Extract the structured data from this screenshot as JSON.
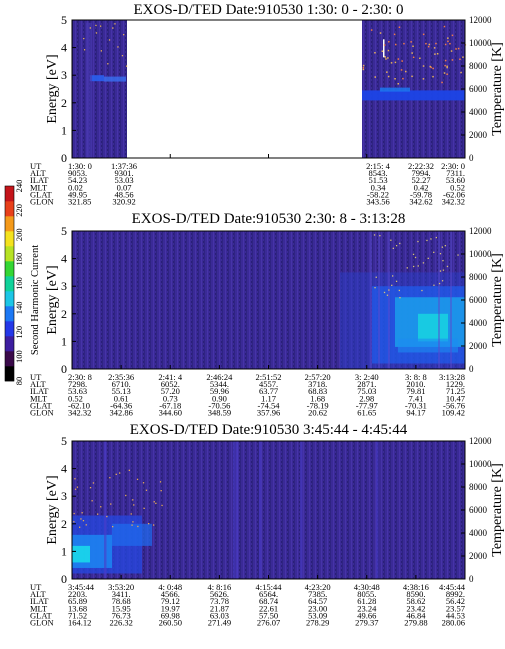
{
  "chart_data": [
    {
      "type": "heatmap",
      "title": "EXOS-D/TED   Date:910530  1:30: 0 - 2:30: 0",
      "ylabel": "Energy [eV]",
      "y2label": "Temperature [K]",
      "ylim": [
        0,
        5
      ],
      "y2lim": [
        0,
        12000
      ],
      "yticks": [
        "0",
        "1",
        "2",
        "3",
        "4",
        "5"
      ],
      "y2ticks": [
        "0",
        "2000",
        "4000",
        "6000",
        "8000",
        "10000",
        "12000"
      ],
      "data_gap": {
        "from": "1:37:36",
        "to": "2:15: 4"
      },
      "rows": [
        "UT",
        "ALT",
        "ILAT",
        "MLT",
        "GLAT",
        "GLON"
      ],
      "columns": [
        [
          "1:30: 0",
          "9053.",
          "54.23",
          "0.02",
          "49.95",
          "321.85"
        ],
        [
          "1:37:36",
          "9301.",
          "53.03",
          "0.07",
          "48.56",
          "320.92"
        ],
        [
          "2:15: 4",
          "8543.",
          "51.53",
          "0.34",
          "-58.22",
          "343.56"
        ],
        [
          "2:22:32",
          "7994.",
          "52.27",
          "0.42",
          "-59.78",
          "342.62"
        ],
        [
          "2:30: 0",
          "7311.",
          "53.60",
          "0.52",
          "-62.06",
          "342.32"
        ]
      ]
    },
    {
      "type": "heatmap",
      "title": "EXOS-D/TED   Date:910530  2:30: 8 - 3:13:28",
      "ylabel": "Energy [eV]",
      "y2label": "Temperature [K]",
      "ylim": [
        0,
        5
      ],
      "y2lim": [
        0,
        12000
      ],
      "yticks": [
        "0",
        "1",
        "2",
        "3",
        "4",
        "5"
      ],
      "y2ticks": [
        "0",
        "2000",
        "4000",
        "6000",
        "8000",
        "10000",
        "12000"
      ],
      "rows": [
        "UT",
        "ALT",
        "ILAT",
        "MLT",
        "GLAT",
        "GLON"
      ],
      "columns": [
        [
          "2:30: 8",
          "7298.",
          "53.63",
          "0.52",
          "-62.10",
          "342.32"
        ],
        [
          "2:35:36",
          "6710.",
          "55.13",
          "0.61",
          "-64.36",
          "342.86"
        ],
        [
          "2:41: 4",
          "6052.",
          "57.20",
          "0.73",
          "-67.18",
          "344.60"
        ],
        [
          "2:46:24",
          "5344.",
          "59.96",
          "0.90",
          "-70.56",
          "348.59"
        ],
        [
          "2:51:52",
          "4557.",
          "63.77",
          "1.17",
          "-74.54",
          "357.96"
        ],
        [
          "2:57:20",
          "3718.",
          "68.83",
          "1.68",
          "-78.19",
          "20.62"
        ],
        [
          "3: 2:40",
          "2871.",
          "75.03",
          "2.98",
          "-77.97",
          "61.65"
        ],
        [
          "3: 8: 8",
          "2010.",
          "79.81",
          "7.41",
          "-70.31",
          "94.17"
        ],
        [
          "3:13:28",
          "1229.",
          "71.25",
          "10.47",
          "-56.76",
          "109.42"
        ]
      ]
    },
    {
      "type": "heatmap",
      "title": "EXOS-D/TED   Date:910530  3:45:44 - 4:45:44",
      "ylabel": "Energy [eV]",
      "y2label": "Temperature [K]",
      "ylim": [
        0,
        5
      ],
      "y2lim": [
        0,
        12000
      ],
      "yticks": [
        "0",
        "1",
        "2",
        "3",
        "4",
        "5"
      ],
      "y2ticks": [
        "0",
        "2000",
        "4000",
        "6000",
        "8000",
        "10000",
        "12000"
      ],
      "rows": [
        "UT",
        "ALT",
        "ILAT",
        "MLT",
        "GLAT",
        "GLON"
      ],
      "columns": [
        [
          "3:45:44",
          "2203.",
          "65.89",
          "13.68",
          "71.52",
          "164.12"
        ],
        [
          "3:53:20",
          "3411.",
          "78.68",
          "15.95",
          "76.73",
          "226.32"
        ],
        [
          "4: 0:48",
          "4566.",
          "79.12",
          "19.97",
          "69.98",
          "260.50"
        ],
        [
          "4: 8:16",
          "5626.",
          "73.78",
          "21.87",
          "63.03",
          "271.49"
        ],
        [
          "4:15:44",
          "6564.",
          "68.74",
          "22.61",
          "57.50",
          "276.07"
        ],
        [
          "4:23:20",
          "7385.",
          "64.57",
          "23.00",
          "53.09",
          "278.29"
        ],
        [
          "4:30:48",
          "8055.",
          "61.28",
          "23.24",
          "49.66",
          "279.37"
        ],
        [
          "4:38:16",
          "8590.",
          "58.62",
          "23.42",
          "46.84",
          "279.88"
        ],
        [
          "4:45:44",
          "8992.",
          "56.42",
          "23.57",
          "44.53",
          "280.06"
        ]
      ]
    }
  ],
  "colorbar": {
    "label": "Second Harmonic Current",
    "ticks": [
      "80",
      "100",
      "120",
      "140",
      "160",
      "180",
      "200",
      "220",
      "240"
    ],
    "colors": [
      "#000000",
      "#3a0a4a",
      "#3d1ea0",
      "#2438e8",
      "#1c78f4",
      "#1cc6e6",
      "#10d29a",
      "#34d634",
      "#b6e224",
      "#f4e21e",
      "#f49a1a",
      "#e8401a",
      "#c4141a"
    ]
  }
}
